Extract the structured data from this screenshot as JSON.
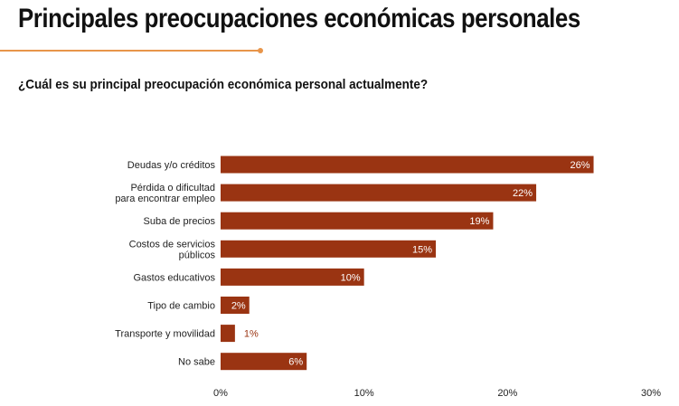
{
  "header": {
    "title": "Principales preocupaciones económicas personales",
    "subtitle": "¿Cuál es su principal preocupación económica personal actualmente?",
    "accent_color": "#e8954a"
  },
  "chart_data": {
    "type": "bar",
    "orientation": "horizontal",
    "categories": [
      [
        "Deudas y/o créditos"
      ],
      [
        "Pérdida o dificultad",
        "para encontrar empleo"
      ],
      [
        "Suba de precios"
      ],
      [
        "Costos de servicios",
        "públicos"
      ],
      [
        "Gastos educativos"
      ],
      [
        "Tipo de cambio"
      ],
      [
        "Transporte y movilidad"
      ],
      [
        "No sabe"
      ]
    ],
    "values": [
      26,
      22,
      19,
      15,
      10,
      2,
      1,
      6
    ],
    "value_labels": [
      "26%",
      "22%",
      "19%",
      "15%",
      "10%",
      "2%",
      "1%",
      "6%"
    ],
    "xlim": [
      0,
      30
    ],
    "xticks": [
      0,
      10,
      20,
      30
    ],
    "xtick_labels": [
      "0%",
      "10%",
      "20%",
      "30%"
    ],
    "bar_color": "#9a3412",
    "grid": false,
    "legend": "none"
  }
}
